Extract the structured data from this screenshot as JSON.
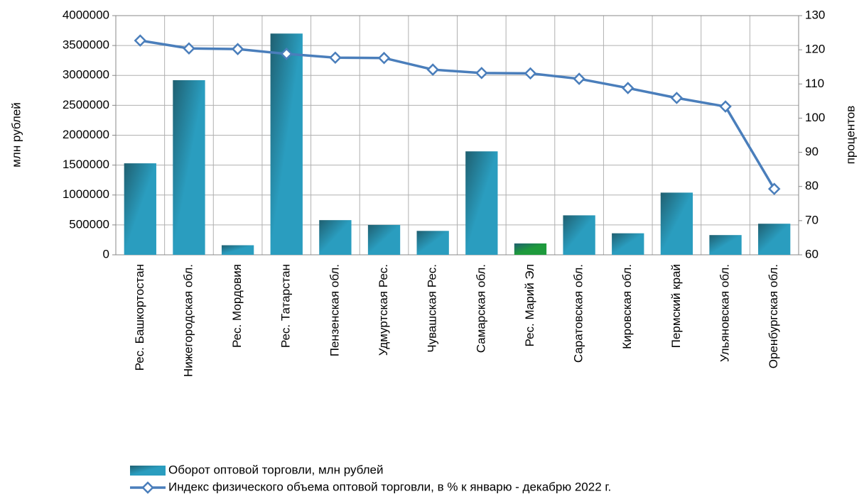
{
  "chart_data": {
    "type": "bar_line",
    "y_label": "млн рублей",
    "y2_label": "процентов",
    "categories": [
      "Рес. Башкортостан",
      "Нижегородская обл.",
      "Рес. Мордовия",
      "Рес. Татарстан",
      "Пензенская обл.",
      "Удмуртская Рес.",
      "Чувашская Рес.",
      "Самарская обл.",
      "Рес. Марий Эл",
      "Саратовская обл.",
      "Кировская обл.",
      "Пермский край",
      "Ульяновская обл.",
      "Оренбургская обл."
    ],
    "series": [
      {
        "name": "Оборот оптовой торговли, млн рублей",
        "type": "bar",
        "color": "#2a9dbf",
        "colors": [
          "#2a9dbf",
          "#2a9dbf",
          "#2a9dbf",
          "#2a9dbf",
          "#2a9dbf",
          "#2a9dbf",
          "#2a9dbf",
          "#2a9dbf",
          "#1e9a3c",
          "#2a9dbf",
          "#2a9dbf",
          "#2a9dbf",
          "#2a9dbf",
          "#2a9dbf"
        ],
        "values": [
          1530000,
          2920000,
          160000,
          3700000,
          580000,
          500000,
          400000,
          1730000,
          190000,
          660000,
          360000,
          1040000,
          330000,
          520000
        ]
      },
      {
        "name": "Индекс физического объема оптовой торговли, в % к январю - декабрю 2022 г.",
        "type": "line",
        "axis": "y2",
        "color": "#4a7ebb",
        "values": [
          122.7,
          120.4,
          120.2,
          118.8,
          117.7,
          117.6,
          114.2,
          113.2,
          113.1,
          111.5,
          108.8,
          105.9,
          103.4,
          79.3
        ]
      }
    ],
    "ylim": [
      0,
      4000000
    ],
    "yticks": [
      0,
      500000,
      1000000,
      1500000,
      2000000,
      2500000,
      3000000,
      3500000,
      4000000
    ],
    "y2lim": [
      60,
      130
    ],
    "y2ticks": [
      60,
      70,
      80,
      90,
      100,
      110,
      120,
      130
    ],
    "grid": true,
    "legend": "bottom"
  }
}
